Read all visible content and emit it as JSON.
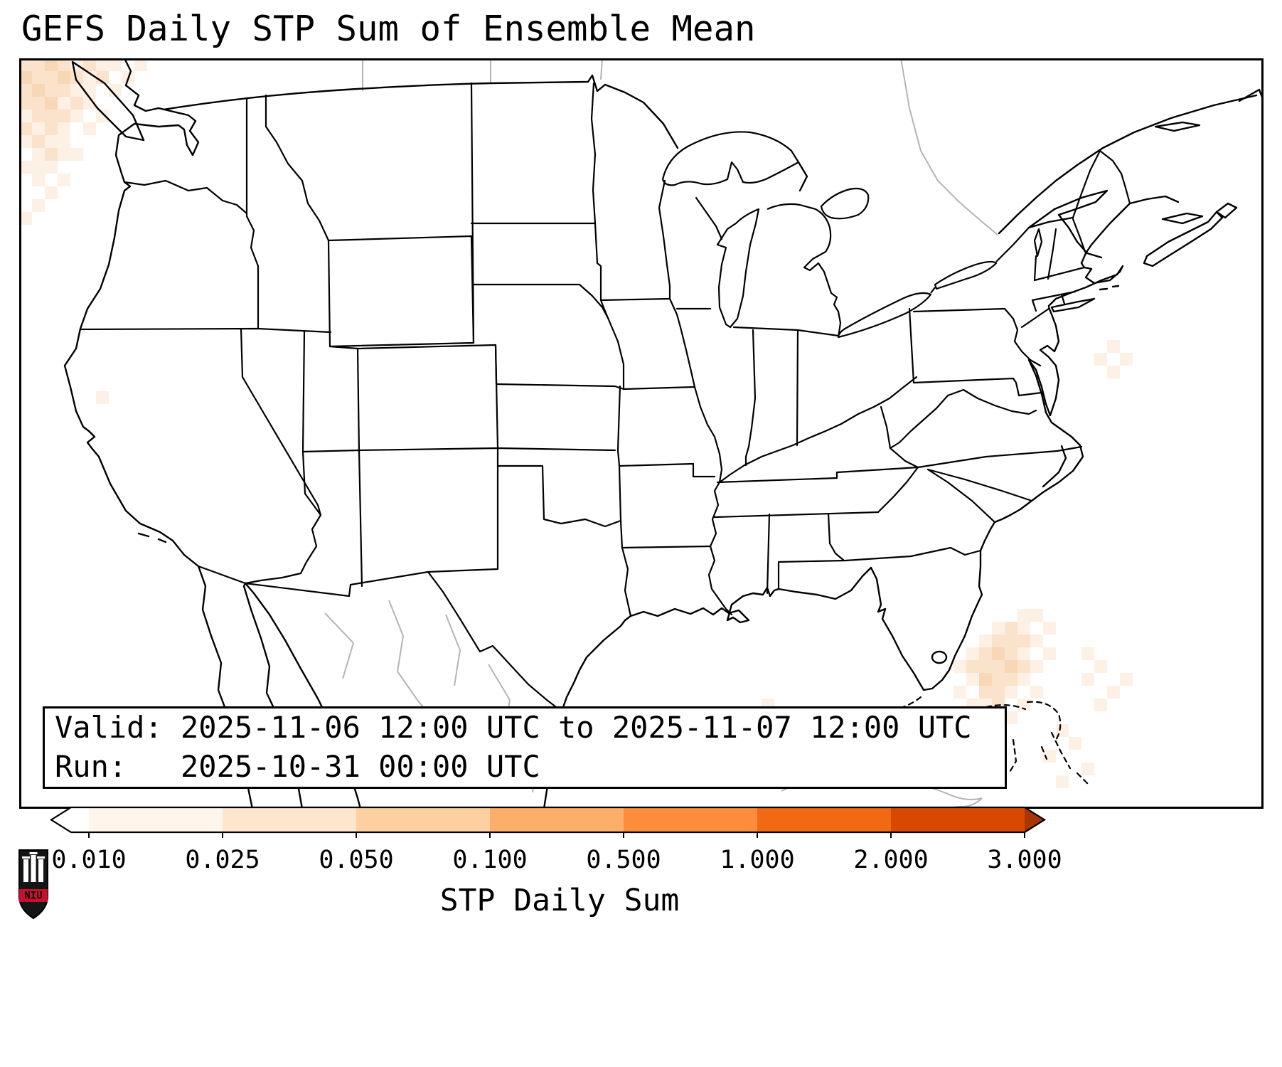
{
  "title": "GEFS Daily STP Sum of Ensemble Mean",
  "info_box": {
    "line1": "Valid: 2025-11-06 12:00 UTC to 2025-11-07 12:00 UTC",
    "line2": "Run:   2025-10-31 00:00 UTC"
  },
  "colorbar": {
    "label": "STP Daily Sum",
    "tick_labels": [
      "0.010",
      "0.025",
      "0.050",
      "0.100",
      "0.500",
      "1.000",
      "2.000",
      "3.000"
    ],
    "segment_colors": [
      "#ffffff",
      "#fff5eb",
      "#fee6ce",
      "#fdd0a2",
      "#fdae6b",
      "#fd8d3c",
      "#f16913",
      "#d94801"
    ],
    "under_color": "#ffffff",
    "over_color": "#a63603"
  },
  "logo": {
    "text": "NIU",
    "shield_color": "#151515",
    "banner_color": "#c8102e"
  },
  "chart_data": {
    "type": "heatmap",
    "title": "GEFS Daily STP Sum of Ensemble Mean",
    "valid_period": "2025-11-06 12:00 UTC to 2025-11-07 12:00 UTC",
    "model_run": "2025-10-31 00:00 UTC",
    "colorbar_label": "STP Daily Sum",
    "levels": [
      0.01,
      0.025,
      0.05,
      0.1,
      0.5,
      1.0,
      2.0,
      3.0
    ],
    "colormap": "Oranges (white below 0.010, dark orange above 3.000)",
    "legend_position": "bottom",
    "notes": "Ensemble-mean daily STP sum is near zero over the entire CONUS; only faint 0.01-0.05 shading appears offshore: over the Pacific off the Washington/Oregon coast and over the western Atlantic near the Bahamas, plus a few isolated weak cells in the Gulf and off California.",
    "shaded_cells": {
      "cell_size": 18,
      "palette": [
        "#fdf0e4",
        "#fbe3cb",
        "#f8d7b6"
      ],
      "clusters": [
        {
          "name": "pacific-northwest-offshore",
          "cells": [
            [
              0,
              0,
              2
            ],
            [
              1,
              0,
              2
            ],
            [
              2,
              0,
              3
            ],
            [
              3,
              0,
              2
            ],
            [
              4,
              0,
              1
            ],
            [
              5,
              0,
              2
            ],
            [
              6,
              0,
              1
            ],
            [
              7,
              0,
              1
            ],
            [
              9,
              0,
              1
            ],
            [
              0,
              1,
              3
            ],
            [
              1,
              1,
              2
            ],
            [
              2,
              1,
              2
            ],
            [
              3,
              1,
              3
            ],
            [
              4,
              1,
              2
            ],
            [
              5,
              1,
              1
            ],
            [
              6,
              1,
              2
            ],
            [
              8,
              1,
              1
            ],
            [
              0,
              2,
              2
            ],
            [
              1,
              2,
              3
            ],
            [
              2,
              2,
              2
            ],
            [
              3,
              2,
              2
            ],
            [
              4,
              2,
              1
            ],
            [
              5,
              2,
              1
            ],
            [
              7,
              2,
              1
            ],
            [
              0,
              3,
              2
            ],
            [
              1,
              3,
              2
            ],
            [
              2,
              3,
              3
            ],
            [
              3,
              3,
              1
            ],
            [
              4,
              3,
              2
            ],
            [
              5,
              3,
              1
            ],
            [
              0,
              4,
              1
            ],
            [
              1,
              4,
              2
            ],
            [
              2,
              4,
              2
            ],
            [
              3,
              4,
              2
            ],
            [
              4,
              4,
              1
            ],
            [
              6,
              4,
              1
            ],
            [
              0,
              5,
              2
            ],
            [
              1,
              5,
              1
            ],
            [
              2,
              5,
              2
            ],
            [
              3,
              5,
              1
            ],
            [
              5,
              5,
              1
            ],
            [
              0,
              6,
              1
            ],
            [
              1,
              6,
              2
            ],
            [
              2,
              6,
              1
            ],
            [
              3,
              6,
              1
            ],
            [
              1,
              7,
              1
            ],
            [
              2,
              7,
              2
            ],
            [
              3,
              7,
              1
            ],
            [
              4,
              7,
              1
            ],
            [
              0,
              8,
              1
            ],
            [
              1,
              8,
              1
            ],
            [
              2,
              8,
              1
            ],
            [
              1,
              9,
              1
            ],
            [
              3,
              9,
              1
            ],
            [
              2,
              10,
              1
            ],
            [
              1,
              11,
              1
            ],
            [
              0,
              12,
              1
            ]
          ]
        },
        {
          "name": "atlantic-bahamas",
          "cells": [
            [
              78,
              43,
              1
            ],
            [
              79,
              43,
              1
            ],
            [
              76,
              44,
              1
            ],
            [
              77,
              44,
              2
            ],
            [
              78,
              44,
              1
            ],
            [
              80,
              44,
              1
            ],
            [
              75,
              45,
              1
            ],
            [
              76,
              45,
              2
            ],
            [
              77,
              45,
              2
            ],
            [
              78,
              45,
              2
            ],
            [
              79,
              45,
              1
            ],
            [
              74,
              46,
              1
            ],
            [
              75,
              46,
              2
            ],
            [
              76,
              46,
              3
            ],
            [
              77,
              46,
              2
            ],
            [
              78,
              46,
              1
            ],
            [
              80,
              46,
              1
            ],
            [
              73,
              47,
              1
            ],
            [
              74,
              47,
              2
            ],
            [
              75,
              47,
              2
            ],
            [
              76,
              47,
              2
            ],
            [
              77,
              47,
              3
            ],
            [
              78,
              47,
              2
            ],
            [
              79,
              47,
              1
            ],
            [
              74,
              48,
              1
            ],
            [
              75,
              48,
              3
            ],
            [
              76,
              48,
              2
            ],
            [
              77,
              48,
              2
            ],
            [
              78,
              48,
              1
            ],
            [
              73,
              49,
              1
            ],
            [
              75,
              49,
              2
            ],
            [
              76,
              49,
              2
            ],
            [
              77,
              49,
              1
            ],
            [
              79,
              49,
              1
            ],
            [
              74,
              50,
              1
            ],
            [
              75,
              50,
              1
            ],
            [
              76,
              50,
              2
            ],
            [
              78,
              50,
              1
            ],
            [
              75,
              51,
              1
            ],
            [
              77,
              51,
              1
            ],
            [
              83,
              46,
              1
            ],
            [
              84,
              47,
              1
            ],
            [
              83,
              48,
              1
            ],
            [
              85,
              49,
              1
            ],
            [
              84,
              50,
              1
            ],
            [
              86,
              48,
              1
            ],
            [
              81,
              52,
              1
            ],
            [
              82,
              53,
              1
            ],
            [
              80,
              54,
              1
            ],
            [
              83,
              55,
              1
            ],
            [
              81,
              56,
              1
            ]
          ]
        },
        {
          "name": "isolated-weak-cells",
          "cells": [
            [
              58,
              50,
              1
            ],
            [
              63,
              53,
              1
            ],
            [
              6,
              26,
              1
            ],
            [
              85,
              22,
              1
            ],
            [
              86,
              23,
              1
            ],
            [
              85,
              24,
              1
            ],
            [
              84,
              23,
              1
            ]
          ]
        }
      ]
    }
  }
}
